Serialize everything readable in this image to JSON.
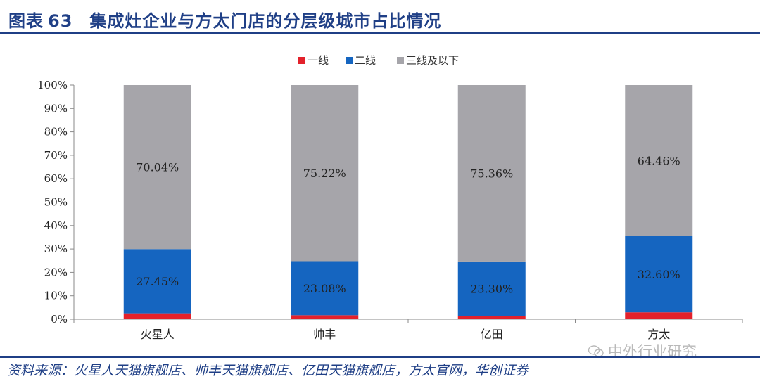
{
  "header": {
    "label": "图表",
    "number": "63",
    "title": "集成灶企业与方太门店的分层级城市占比情况"
  },
  "source": "资料来源：火星人天猫旗舰店、帅丰天猫旗舰店、亿田天猫旗舰店，方太官网，华创证券",
  "watermark": "中外行业研究",
  "chart_data": {
    "type": "bar",
    "stacked": true,
    "categories": [
      "火星人",
      "帅丰",
      "亿田",
      "方太"
    ],
    "series": [
      {
        "name": "一线",
        "color": "#e3212b",
        "values": [
          2.51,
          1.7,
          1.34,
          2.94
        ]
      },
      {
        "name": "二线",
        "color": "#1565c0",
        "values": [
          27.45,
          23.08,
          23.3,
          32.6
        ]
      },
      {
        "name": "三线及以下",
        "color": "#a6a5aa",
        "values": [
          70.04,
          75.22,
          75.36,
          64.46
        ]
      }
    ],
    "data_labels": [
      [
        "",
        "27.45%",
        "70.04%"
      ],
      [
        "",
        "23.08%",
        "75.22%"
      ],
      [
        "",
        "23.30%",
        "75.36%"
      ],
      [
        "",
        "32.60%",
        "64.46%"
      ]
    ],
    "yticks": [
      "0%",
      "10%",
      "20%",
      "30%",
      "40%",
      "50%",
      "60%",
      "70%",
      "80%",
      "90%",
      "100%"
    ],
    "ylim": [
      0,
      100
    ],
    "legend_position": "top-center",
    "grid": false
  }
}
